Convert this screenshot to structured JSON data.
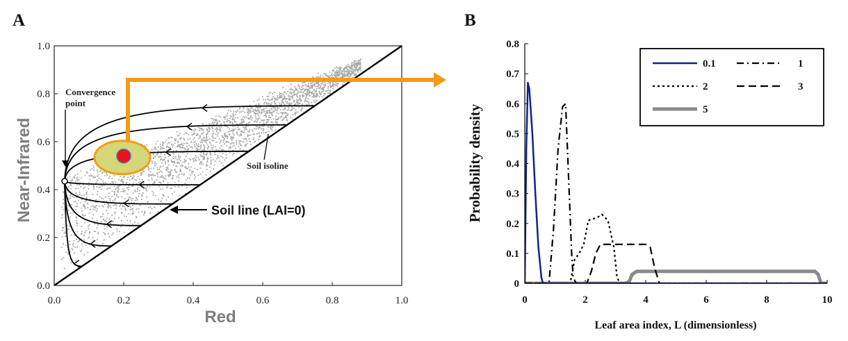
{
  "panel_a": {
    "label": "A",
    "xlabel": "Red",
    "ylabel": "Near-Infrared",
    "xticks": [
      "0.0",
      "0.2",
      "0.4",
      "0.6",
      "0.8",
      "1.0"
    ],
    "yticks": [
      "0.0",
      "0.2",
      "0.4",
      "0.6",
      "0.8",
      "1.0"
    ],
    "annotations": {
      "convergence": [
        "Convergence",
        "point"
      ],
      "soil_isoline": "Soil isoline",
      "soil_line": "Soil line (LAI=0)"
    },
    "colors": {
      "scatter": "#a8a8a8",
      "highlight_fill": "#d4d67a",
      "highlight_edge": "#f39c12",
      "dot": "#e8141c",
      "arrow": "#f39c12"
    }
  },
  "panel_b": {
    "label": "B",
    "xlabel": "Leaf area index, L (dimensionless)",
    "ylabel": "Probability density",
    "xticks": [
      "0",
      "2",
      "4",
      "6",
      "8",
      "10"
    ],
    "yticks": [
      "0",
      "0.1",
      "0.2",
      "0.3",
      "0.4",
      "0.5",
      "0.6",
      "0.7",
      "0.8"
    ],
    "legend": [
      "0.1",
      "1",
      "2",
      "3",
      "5"
    ]
  },
  "chart_data": [
    {
      "type": "scatter",
      "title": "A",
      "xlabel": "Red",
      "ylabel": "Near-Infrared",
      "xlim": [
        0,
        1
      ],
      "ylim": [
        0,
        1
      ],
      "soil_line": {
        "x": [
          0,
          1
        ],
        "y": [
          0,
          1
        ]
      },
      "convergence_point": {
        "x": 0.03,
        "y": 0.435
      },
      "highlight_point": {
        "x": 0.2,
        "y": 0.54
      },
      "soil_isolines_start": [
        {
          "x": 0.75,
          "y": 0.75
        },
        {
          "x": 0.67,
          "y": 0.67
        },
        {
          "x": 0.56,
          "y": 0.56
        },
        {
          "x": 0.42,
          "y": 0.42
        },
        {
          "x": 0.34,
          "y": 0.34
        },
        {
          "x": 0.25,
          "y": 0.25
        },
        {
          "x": 0.165,
          "y": 0.165
        },
        {
          "x": 0.08,
          "y": 0.08
        }
      ]
    },
    {
      "type": "line",
      "title": "B",
      "xlabel": "Leaf area index, L (dimensionless)",
      "ylabel": "Probability density",
      "xlim": [
        0,
        10
      ],
      "ylim": [
        0,
        0.8
      ],
      "series": [
        {
          "name": "0.1",
          "style": "solid-blue",
          "x": [
            0,
            0.05,
            0.1,
            0.15,
            0.25,
            0.35,
            0.45,
            0.55,
            0.6,
            0.7,
            10
          ],
          "y": [
            0,
            0.45,
            0.67,
            0.65,
            0.5,
            0.3,
            0.12,
            0.02,
            0,
            0,
            0
          ]
        },
        {
          "name": "1",
          "style": "dash-dot",
          "x": [
            0,
            0.8,
            0.95,
            1.1,
            1.25,
            1.35,
            1.45,
            1.55,
            1.6,
            1.7,
            1.8,
            10
          ],
          "y": [
            0,
            0,
            0.18,
            0.45,
            0.59,
            0.6,
            0.35,
            0.1,
            0.02,
            0,
            0,
            0
          ]
        },
        {
          "name": "2",
          "style": "dotted",
          "x": [
            0,
            1.5,
            1.65,
            1.8,
            1.95,
            2.1,
            2.4,
            2.55,
            2.75,
            2.95,
            3.05,
            3.15,
            10
          ],
          "y": [
            0,
            0,
            0.08,
            0.1,
            0.13,
            0.21,
            0.22,
            0.23,
            0.21,
            0.12,
            0.02,
            0,
            0
          ]
        },
        {
          "name": "3",
          "style": "dashed",
          "x": [
            0,
            2.05,
            2.2,
            2.35,
            2.5,
            2.6,
            3.7,
            3.85,
            4.0,
            4.15,
            4.3,
            4.45,
            10
          ],
          "y": [
            0,
            0,
            0.04,
            0.1,
            0.13,
            0.13,
            0.13,
            0.13,
            0.13,
            0.12,
            0.05,
            0,
            0
          ]
        },
        {
          "name": "5",
          "style": "solid-gray",
          "x": [
            0,
            3.3,
            3.45,
            3.55,
            3.7,
            9.5,
            9.6,
            9.7,
            9.8,
            10
          ],
          "y": [
            0,
            0,
            0.005,
            0.03,
            0.04,
            0.04,
            0.04,
            0.03,
            0,
            0
          ]
        }
      ]
    }
  ]
}
